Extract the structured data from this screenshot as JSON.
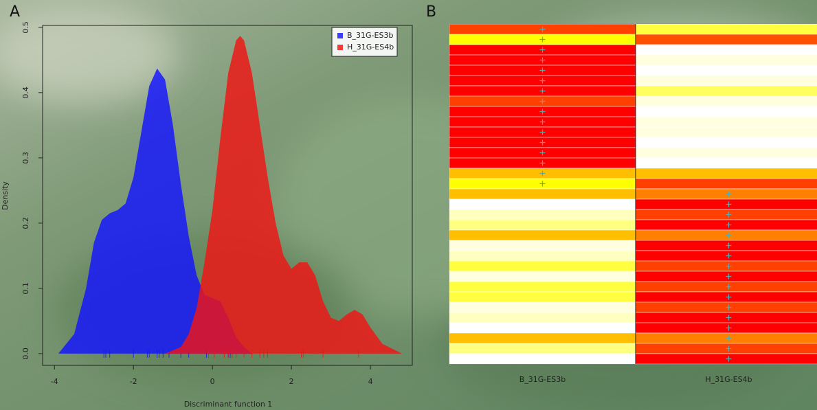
{
  "chart_data": [
    {
      "type": "density",
      "panel_label": "A",
      "x_label": "Discriminant function 1",
      "y_label": "Density",
      "xlim": [
        -4.3,
        5.06
      ],
      "ylim": [
        -0.018,
        0.503
      ],
      "xticks": [
        -4,
        -2,
        0,
        2,
        4
      ],
      "yticks": [
        {
          "value": 0,
          "label": "0.0"
        },
        0.1,
        0.2,
        0.3,
        0.4,
        0.5
      ],
      "legend": "top-right",
      "series": [
        {
          "name": "B_31G-ES3b",
          "color": "rgba(20,20,255,0.82)",
          "x": [
            -3.9,
            -3.5,
            -3.2,
            -3.0,
            -2.8,
            -2.6,
            -2.4,
            -2.2,
            -2.0,
            -1.8,
            -1.6,
            -1.4,
            -1.2,
            -1.0,
            -0.8,
            -0.6,
            -0.4,
            -0.2,
            0,
            0.2,
            0.4,
            0.6,
            0.8,
            1.0
          ],
          "values": [
            0,
            0.03,
            0.1,
            0.17,
            0.205,
            0.215,
            0.22,
            0.23,
            0.27,
            0.34,
            0.41,
            0.437,
            0.42,
            0.35,
            0.26,
            0.18,
            0.12,
            0.09,
            0.085,
            0.08,
            0.055,
            0.025,
            0.01,
            0
          ],
          "rug": [
            -2.75,
            -2.7,
            -2.6,
            -2.0,
            -1.65,
            -1.6,
            -1.4,
            -1.35,
            -1.25,
            -1.1,
            -0.8,
            -0.6,
            -0.15,
            0.4,
            0.45
          ]
        },
        {
          "name": "H_31G-ES4b",
          "color": "rgba(240,20,20,0.82)",
          "x": [
            -1.2,
            -0.8,
            -0.6,
            -0.4,
            -0.2,
            0,
            0.2,
            0.4,
            0.6,
            0.7,
            0.8,
            1.0,
            1.2,
            1.4,
            1.6,
            1.8,
            2.0,
            2.2,
            2.4,
            2.6,
            2.8,
            3.0,
            3.2,
            3.4,
            3.6,
            3.8,
            4.0,
            4.3,
            4.8
          ],
          "values": [
            0,
            0.01,
            0.03,
            0.07,
            0.14,
            0.22,
            0.33,
            0.43,
            0.48,
            0.487,
            0.48,
            0.43,
            0.35,
            0.27,
            0.2,
            0.15,
            0.13,
            0.14,
            0.14,
            0.12,
            0.08,
            0.055,
            0.05,
            0.06,
            0.067,
            0.06,
            0.04,
            0.015,
            0
          ],
          "rug": [
            -0.1,
            0.05,
            0.3,
            0.4,
            0.5,
            0.6,
            0.8,
            1.0,
            1.2,
            1.3,
            1.4,
            2.25,
            2.3,
            2.8,
            3.7
          ]
        }
      ]
    },
    {
      "type": "heatmap",
      "panel_label": "B",
      "columns": [
        {
          "name": "B_31G-ES3b",
          "colors": [
            "#ff4000",
            "#ffff00",
            "#ff0000",
            "#ff0000",
            "#ff0000",
            "#ff0000",
            "#ff0000",
            "#ff4000",
            "#ff0000",
            "#ff0000",
            "#ff0000",
            "#ff0000",
            "#ff0000",
            "#ff0000",
            "#ffbf00",
            "#ffff00",
            "#ffbf00",
            "#ffffff",
            "#ffffbf",
            "#ffff80",
            "#ffbf00",
            "#ffffdf",
            "#ffffbf",
            "#ffff40",
            "#ffffdf",
            "#ffff40",
            "#ffff40",
            "#ffffdf",
            "#ffffbf",
            "#ffffff",
            "#ffbf00",
            "#ffff80",
            "#ffffff"
          ],
          "crosses": [
            true,
            true,
            true,
            true,
            true,
            true,
            true,
            true,
            true,
            true,
            true,
            true,
            true,
            true,
            true,
            true,
            false,
            false,
            false,
            false,
            false,
            false,
            false,
            false,
            false,
            false,
            false,
            false,
            false,
            false,
            false,
            false,
            false
          ]
        },
        {
          "name": "H_31G-ES4b",
          "colors": [
            "#ffff40",
            "#ff5000",
            "#ffffff",
            "#ffffdf",
            "#ffffff",
            "#ffffdf",
            "#ffff60",
            "#ffffdf",
            "#ffffff",
            "#ffffdf",
            "#ffffdf",
            "#ffffff",
            "#ffffdf",
            "#ffffff",
            "#ffbf00",
            "#ff4000",
            "#ff8000",
            "#ff0000",
            "#ff4000",
            "#ff0000",
            "#ff8000",
            "#ff0000",
            "#ff0000",
            "#ff4000",
            "#ff0000",
            "#ff4000",
            "#ff0000",
            "#ff4000",
            "#ff0000",
            "#ff0000",
            "#ff8000",
            "#ff4000",
            "#ff0000"
          ],
          "crosses": [
            false,
            false,
            false,
            false,
            false,
            false,
            false,
            false,
            false,
            false,
            false,
            false,
            false,
            false,
            false,
            false,
            true,
            true,
            true,
            true,
            true,
            true,
            true,
            true,
            true,
            true,
            true,
            true,
            true,
            true,
            true,
            true,
            true
          ]
        }
      ]
    }
  ]
}
